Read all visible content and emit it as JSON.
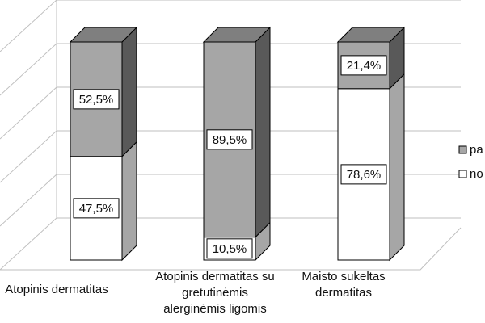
{
  "chart_data": {
    "type": "bar",
    "stacked": true,
    "percent_stacked": true,
    "three_d": true,
    "categories": [
      [
        "Atopinis dermatitas"
      ],
      [
        "Atopinis dermatitas su",
        "gretutinėmis",
        "alerginėmis ligomis"
      ],
      [
        "Maisto sukeltas",
        "dermatitas"
      ]
    ],
    "series": [
      {
        "name": "no",
        "values": [
          47.5,
          10.5,
          78.6
        ],
        "labels": [
          "47,5%",
          "10,5%",
          "78,6%"
        ]
      },
      {
        "name": "pa",
        "values": [
          52.5,
          89.5,
          21.4
        ],
        "labels": [
          "52,5%",
          "89,5%",
          "21,4%"
        ]
      }
    ],
    "ylim": [
      0,
      100
    ],
    "grid": true,
    "legend_position": "right",
    "colors": {
      "series_no": "#ffffff",
      "series_pa": "#a6a6a6",
      "edge": "#000000",
      "grid": "#bfbfbf"
    }
  }
}
